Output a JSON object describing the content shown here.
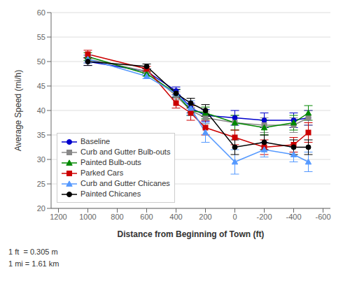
{
  "chart_data": {
    "type": "line",
    "xlabel": "Distance from Beginning of Town (ft)",
    "ylabel": "Average Speed (mi/h)",
    "annotations": [
      "1 ft  = 0.305 m",
      "1 mi = 1.61 km"
    ],
    "x": [
      1000,
      600,
      400,
      300,
      200,
      0,
      -200,
      -400,
      -500
    ],
    "xlim": [
      1250,
      -650
    ],
    "xticks": [
      1200,
      1000,
      800,
      600,
      400,
      200,
      0,
      -200,
      -400,
      -600
    ],
    "ylim": [
      20,
      60
    ],
    "yticks": [
      20,
      25,
      30,
      35,
      40,
      45,
      50,
      55,
      60
    ],
    "grid": "y",
    "legend": "lower left",
    "series": [
      {
        "name": "Baseline",
        "color": "#0000CC",
        "marker": "circle",
        "values": [
          50.0,
          48.0,
          44.0,
          40.5,
          39.0,
          38.5,
          38.0,
          38.0,
          38.5
        ],
        "yerr": [
          0.8,
          0.5,
          0.8,
          1.0,
          1.2,
          1.5,
          1.5,
          1.5,
          1.5
        ]
      },
      {
        "name": "Curb and Gutter Bulb-outs",
        "color": "#888888",
        "marker": "square",
        "values": [
          50.5,
          48.0,
          43.0,
          40.0,
          38.5,
          37.5,
          37.0,
          37.0,
          38.5
        ],
        "yerr": [
          0.8,
          0.5,
          0.8,
          1.0,
          1.2,
          1.5,
          1.5,
          1.5,
          1.5
        ]
      },
      {
        "name": "Painted Bulb-outs",
        "color": "#008800",
        "marker": "triangle",
        "values": [
          51.0,
          47.5,
          43.5,
          40.0,
          39.5,
          37.5,
          36.5,
          37.5,
          39.5
        ],
        "yerr": [
          0.8,
          0.5,
          0.8,
          1.0,
          1.2,
          1.5,
          1.5,
          1.5,
          1.5
        ]
      },
      {
        "name": "Parked Cars",
        "color": "#CC0000",
        "marker": "square",
        "values": [
          51.5,
          48.5,
          41.5,
          39.5,
          36.5,
          34.5,
          32.5,
          33.0,
          35.5
        ],
        "yerr": [
          0.8,
          0.5,
          1.0,
          1.5,
          1.5,
          1.5,
          1.5,
          1.5,
          2.0
        ]
      },
      {
        "name": "Curb and Gutter Chicanes",
        "color": "#5599FF",
        "marker": "triangle",
        "values": [
          50.5,
          47.0,
          43.5,
          40.5,
          35.5,
          29.5,
          32.0,
          31.0,
          29.5
        ],
        "yerr": [
          0.8,
          0.5,
          0.8,
          1.5,
          2.0,
          2.5,
          1.5,
          1.5,
          2.0
        ]
      },
      {
        "name": "Painted Chicanes",
        "color": "#000000",
        "marker": "circle",
        "values": [
          50.0,
          49.0,
          43.5,
          41.5,
          40.0,
          32.5,
          33.5,
          32.5,
          32.5
        ],
        "yerr": [
          0.8,
          0.5,
          0.8,
          1.0,
          1.2,
          1.5,
          1.5,
          1.5,
          1.5
        ]
      }
    ]
  }
}
